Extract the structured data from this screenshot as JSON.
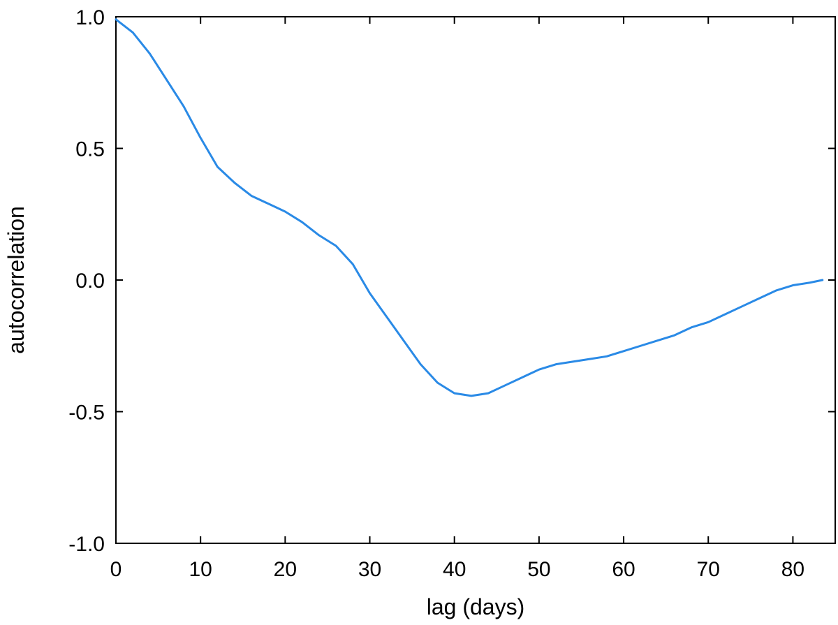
{
  "chart_data": {
    "type": "line",
    "xlabel": "lag (days)",
    "ylabel": "autocorrelation",
    "xlim": [
      0,
      85
    ],
    "ylim": [
      -1.0,
      1.0
    ],
    "xticks": [
      0,
      10,
      20,
      30,
      40,
      50,
      60,
      70,
      80
    ],
    "xtick_labels": [
      "0",
      "10",
      "20",
      "30",
      "40",
      "50",
      "60",
      "70",
      "80"
    ],
    "yticks": [
      -1.0,
      -0.5,
      0.0,
      0.5,
      1.0
    ],
    "ytick_labels": [
      "-1.0",
      "-0.5",
      "0.0",
      "0.5",
      "1.0"
    ],
    "grid": false,
    "legend": "none",
    "series": [
      {
        "color": "#2a8ae6",
        "x": [
          0,
          2,
          4,
          6,
          8,
          10,
          12,
          14,
          16,
          18,
          20,
          22,
          24,
          26,
          28,
          30,
          32,
          34,
          36,
          38,
          40,
          42,
          44,
          46,
          48,
          50,
          52,
          54,
          56,
          58,
          60,
          62,
          64,
          66,
          68,
          70,
          72,
          74,
          76,
          78,
          80,
          82,
          83.5
        ],
        "y": [
          0.99,
          0.94,
          0.86,
          0.76,
          0.66,
          0.54,
          0.43,
          0.37,
          0.32,
          0.29,
          0.26,
          0.22,
          0.17,
          0.13,
          0.06,
          -0.05,
          -0.14,
          -0.23,
          -0.32,
          -0.39,
          -0.43,
          -0.44,
          -0.43,
          -0.4,
          -0.37,
          -0.34,
          -0.32,
          -0.31,
          -0.3,
          -0.29,
          -0.27,
          -0.25,
          -0.23,
          -0.21,
          -0.18,
          -0.16,
          -0.13,
          -0.1,
          -0.07,
          -0.04,
          -0.02,
          -0.01,
          0.0
        ]
      }
    ]
  }
}
